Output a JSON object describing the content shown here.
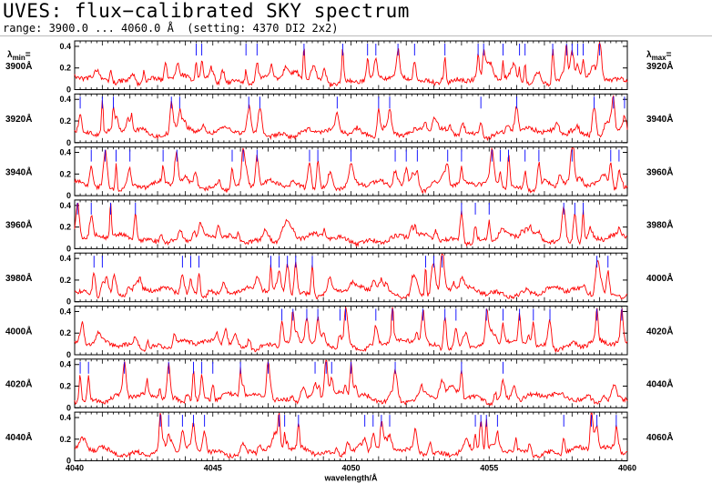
{
  "header": {
    "title": "UVES: flux−calibrated SKY spectrum",
    "subtitle": "range: 3900.0 ... 4060.0 Å  (setting: 4370 DI2 2x2)"
  },
  "side_labels": {
    "left_head": "λmin=",
    "right_head": "λmax="
  },
  "chart_data": {
    "type": "line",
    "title": "UVES: flux−calibrated SKY spectrum",
    "subtitle": "range: 3900.0 ... 4060.0 Å  (setting: 4370 DI2 2x2)",
    "xlabel": "wavelength/Å",
    "ylim": [
      0,
      0.45
    ],
    "y_ticks": [
      "0",
      "0.2",
      "0.4"
    ],
    "bottom_x_ticks": [
      "4040",
      "4045",
      "4050",
      "4055",
      "4060"
    ],
    "line_color": "#ff0000",
    "marker_color": "#0000ff",
    "panels": [
      {
        "lambda_min": "3900Å",
        "lambda_max": "3920Å",
        "range": [
          3900,
          3920
        ],
        "markers": [
          3904.4,
          3904.6,
          3906.2,
          3906.6,
          3908.3,
          3909.7,
          3910.6,
          3910.9,
          3911.7,
          3912.3,
          3913.4,
          3914.6,
          3914.8,
          3915.5,
          3916.1,
          3916.3,
          3917.3,
          3917.8,
          3918.0,
          3918.2,
          3918.4,
          3919.0
        ]
      },
      {
        "lambda_min": "3920Å",
        "lambda_max": "3940Å",
        "range": [
          3920,
          3940
        ],
        "markers": [
          3920.2,
          3921.0,
          3921.4,
          3923.5,
          3923.8,
          3926.3,
          3926.7,
          3929.5,
          3931.0,
          3931.4,
          3934.7,
          3936.0,
          3938.8,
          3939.5,
          3939.9
        ]
      },
      {
        "lambda_min": "3940Å",
        "lambda_max": "3960Å",
        "range": [
          3940,
          3960
        ],
        "markers": [
          3940.6,
          3941.1,
          3941.5,
          3942.0,
          3943.2,
          3943.7,
          3945.7,
          3946.1,
          3946.6,
          3948.5,
          3948.8,
          3950.0,
          3951.6,
          3952.0,
          3952.4,
          3953.5,
          3954.0,
          3955.1,
          3955.4,
          3955.7,
          3956.3,
          3956.8,
          3958.0,
          3959.4,
          3959.7
        ]
      },
      {
        "lambda_min": "3960Å",
        "lambda_max": "3980Å",
        "range": [
          3960,
          3980
        ],
        "markers": [
          3960.1,
          3960.6,
          3961.3,
          3962.2,
          3974.0,
          3974.5,
          3975.0,
          3977.7,
          3978.1,
          3978.4
        ]
      },
      {
        "lambda_min": "3980Å",
        "lambda_max": "4000Å",
        "range": [
          3980,
          4000
        ],
        "markers": [
          3980.7,
          3981.0,
          3983.9,
          3984.2,
          3984.5,
          3987.1,
          3987.4,
          3987.7,
          3988.0,
          3988.6,
          3992.7,
          3993.0,
          3993.3,
          3998.9,
          3999.3
        ]
      },
      {
        "lambda_min": "4000Å",
        "lambda_max": "4020Å",
        "range": [
          4000,
          4020
        ],
        "markers": [
          4007.5,
          4007.9,
          4008.4,
          4008.8,
          4009.6,
          4009.8,
          4010.9,
          4011.5,
          4012.6,
          4013.4,
          4013.8,
          4014.9,
          4015.5,
          4016.1,
          4016.6,
          4017.2,
          4018.9,
          4019.8
        ]
      },
      {
        "lambda_min": "4020Å",
        "lambda_max": "4040Å",
        "range": [
          4020,
          4040
        ],
        "markers": [
          4020.2,
          4020.5,
          4021.8,
          4023.4,
          4024.3,
          4024.6,
          4025.0,
          4026.0,
          4027.0,
          4028.7,
          4029.1,
          4029.3,
          4030.0,
          4031.6,
          4034.0,
          4035.5
        ]
      },
      {
        "lambda_min": "4040Å",
        "lambda_max": "4060Å",
        "range": [
          4040,
          4060
        ],
        "markers": [
          4043.1,
          4043.4,
          4043.9,
          4044.3,
          4044.7,
          4047.4,
          4047.6,
          4048.1,
          4050.5,
          4050.8,
          4051.1,
          4051.4,
          4054.5,
          4054.7,
          4054.9,
          4055.3,
          4057.7,
          4058.7,
          4058.9,
          4059.6
        ]
      }
    ]
  }
}
